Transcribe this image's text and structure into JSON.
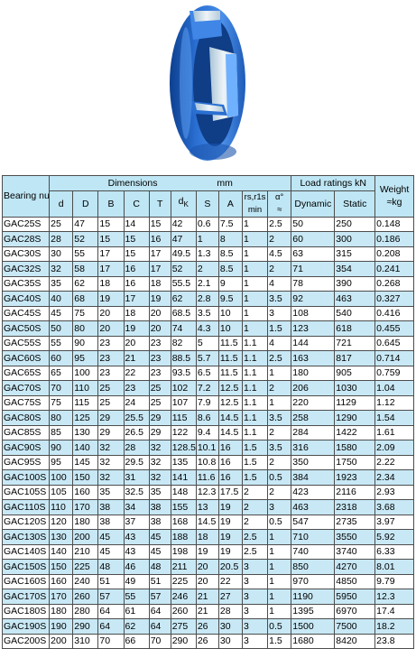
{
  "figure": {
    "icon": "bearing-illustration",
    "colors": {
      "bearing": "#2a6fd2",
      "highlight": "#6fb0ff",
      "shadow": "#0d3f8f",
      "inner": "#dbe6ee"
    }
  },
  "table": {
    "header": {
      "bearing_number": "Bearing number",
      "dimensions": "Dimensions",
      "dimensions_unit": "mm",
      "load_ratings": "Load ratings  kN",
      "weight_line1": "Weight",
      "weight_line2": "≈kg",
      "cols": {
        "d": "d",
        "D": "D",
        "B": "B",
        "C": "C",
        "T": "T",
        "dk_base": "d",
        "dk_sub": "K",
        "S": "S",
        "A": "A",
        "rs_line1": "rs,r1s",
        "rs_line2": "min",
        "alpha_line1": "α°",
        "alpha_line2": "≈",
        "dynamic": "Dynamic",
        "static": "Static"
      }
    },
    "rows": [
      [
        "GAC25S",
        "25",
        "47",
        "15",
        "14",
        "15",
        "42",
        "0.6",
        "7.5",
        "1",
        "2.5",
        "50",
        "250",
        "0.148"
      ],
      [
        "GAC28S",
        "28",
        "52",
        "15",
        "15",
        "16",
        "47",
        "1",
        "8",
        "1",
        "2",
        "60",
        "300",
        "0.186"
      ],
      [
        "GAC30S",
        "30",
        "55",
        "17",
        "15",
        "17",
        "49.5",
        "1.3",
        "8.5",
        "1",
        "4.5",
        "63",
        "315",
        "0.208"
      ],
      [
        "GAC32S",
        "32",
        "58",
        "17",
        "16",
        "17",
        "52",
        "2",
        "8.5",
        "1",
        "2",
        "71",
        "354",
        "0.241"
      ],
      [
        "GAC35S",
        "35",
        "62",
        "18",
        "16",
        "18",
        "55.5",
        "2.1",
        "9",
        "1",
        "4",
        "78",
        "390",
        "0.268"
      ],
      [
        "GAC40S",
        "40",
        "68",
        "19",
        "17",
        "19",
        "62",
        "2.8",
        "9.5",
        "1",
        "3.5",
        "92",
        "463",
        "0.327"
      ],
      [
        "GAC45S",
        "45",
        "75",
        "20",
        "18",
        "20",
        "68.5",
        "3.5",
        "10",
        "1",
        "3",
        "108",
        "540",
        "0.416"
      ],
      [
        "GAC50S",
        "50",
        "80",
        "20",
        "19",
        "20",
        "74",
        "4.3",
        "10",
        "1",
        "1.5",
        "123",
        "618",
        "0.455"
      ],
      [
        "GAC55S",
        "55",
        "90",
        "23",
        "20",
        "23",
        "82",
        "5",
        "11.5",
        "1.1",
        "4",
        "144",
        "721",
        "0.645"
      ],
      [
        "GAC60S",
        "60",
        "95",
        "23",
        "21",
        "23",
        "88.5",
        "5.7",
        "11.5",
        "1.1",
        "2.5",
        "163",
        "817",
        "0.714"
      ],
      [
        "GAC65S",
        "65",
        "100",
        "23",
        "22",
        "23",
        "93.5",
        "6.5",
        "11.5",
        "1.1",
        "1",
        "180",
        "905",
        "0.759"
      ],
      [
        "GAC70S",
        "70",
        "110",
        "25",
        "23",
        "25",
        "102",
        "7.2",
        "12.5",
        "1.1",
        "2",
        "206",
        "1030",
        "1.04"
      ],
      [
        "GAC75S",
        "75",
        "115",
        "25",
        "24",
        "25",
        "107",
        "7.9",
        "12.5",
        "1.1",
        "1",
        "220",
        "1129",
        "1.12"
      ],
      [
        "GAC80S",
        "80",
        "125",
        "29",
        "25.5",
        "29",
        "115",
        "8.6",
        "14.5",
        "1.1",
        "3.5",
        "258",
        "1290",
        "1.54"
      ],
      [
        "GAC85S",
        "85",
        "130",
        "29",
        "26.5",
        "29",
        "122",
        "9.4",
        "14.5",
        "1.1",
        "2",
        "284",
        "1422",
        "1.61"
      ],
      [
        "GAC90S",
        "90",
        "140",
        "32",
        "28",
        "32",
        "128.5",
        "10.1",
        "16",
        "1.5",
        "3.5",
        "316",
        "1580",
        "2.09"
      ],
      [
        "GAC95S",
        "95",
        "145",
        "32",
        "29.5",
        "32",
        "135",
        "10.8",
        "16",
        "1.5",
        "2",
        "350",
        "1750",
        "2.22"
      ],
      [
        "GAC100S",
        "100",
        "150",
        "32",
        "31",
        "32",
        "141",
        "11.6",
        "16",
        "1.5",
        "0.5",
        "384",
        "1923",
        "2.34"
      ],
      [
        "GAC105S",
        "105",
        "160",
        "35",
        "32.5",
        "35",
        "148",
        "12.3",
        "17.5",
        "2",
        "2",
        "423",
        "2116",
        "2.93"
      ],
      [
        "GAC110S",
        "110",
        "170",
        "38",
        "34",
        "38",
        "155",
        "13",
        "19",
        "2",
        "3",
        "463",
        "2318",
        "3.68"
      ],
      [
        "GAC120S",
        "120",
        "180",
        "38",
        "37",
        "38",
        "168",
        "14.5",
        "19",
        "2",
        "0.5",
        "547",
        "2735",
        "3.97"
      ],
      [
        "GAC130S",
        "130",
        "200",
        "45",
        "43",
        "45",
        "188",
        "18",
        "19",
        "2.5",
        "1",
        "710",
        "3550",
        "5.92"
      ],
      [
        "GAC140S",
        "140",
        "210",
        "45",
        "43",
        "45",
        "198",
        "19",
        "19",
        "2.5",
        "1",
        "740",
        "3740",
        "6.33"
      ],
      [
        "GAC150S",
        "150",
        "225",
        "48",
        "46",
        "48",
        "211",
        "20",
        "20.5",
        "3",
        "1",
        "850",
        "4270",
        "8.01"
      ],
      [
        "GAC160S",
        "160",
        "240",
        "51",
        "49",
        "51",
        "225",
        "20",
        "22",
        "3",
        "1",
        "970",
        "4850",
        "9.79"
      ],
      [
        "GAC170S",
        "170",
        "260",
        "57",
        "55",
        "57",
        "246",
        "21",
        "27",
        "3",
        "1",
        "1190",
        "5950",
        "12.3"
      ],
      [
        "GAC180S",
        "180",
        "280",
        "64",
        "61",
        "64",
        "260",
        "21",
        "28",
        "3",
        "1",
        "1395",
        "6970",
        "17.4"
      ],
      [
        "GAC190S",
        "190",
        "290",
        "64",
        "62",
        "64",
        "275",
        "26",
        "30",
        "3",
        "0.5",
        "1500",
        "7500",
        "18.2"
      ],
      [
        "GAC200S",
        "200",
        "310",
        "70",
        "66",
        "70",
        "290",
        "26",
        "30",
        "3",
        "1.5",
        "1680",
        "8420",
        "23.8"
      ]
    ]
  }
}
